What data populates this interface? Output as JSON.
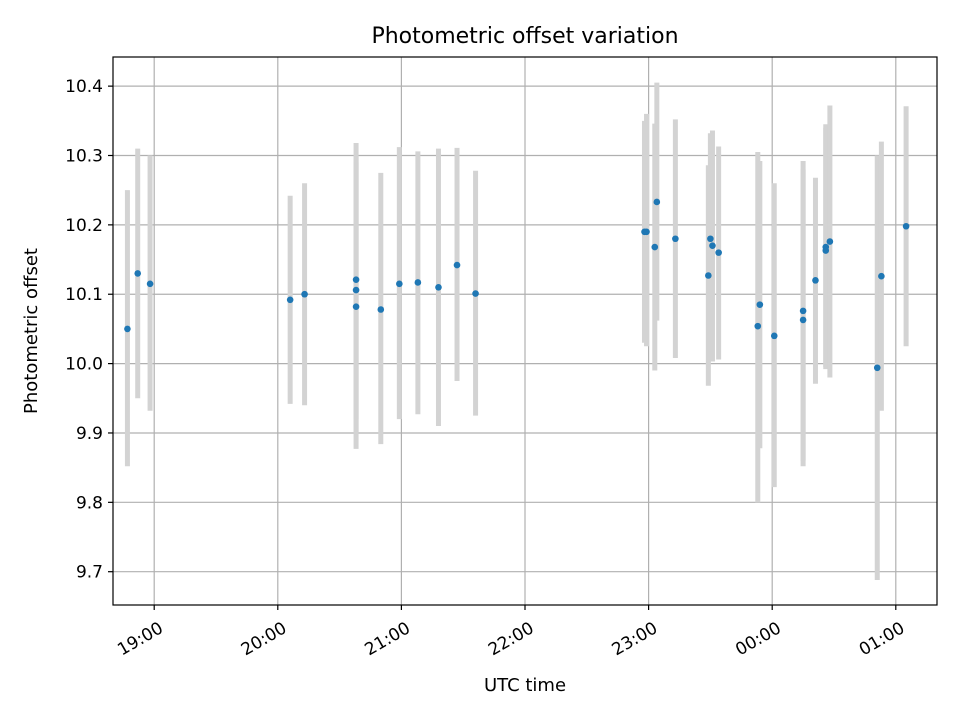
{
  "chart_data": {
    "type": "scatter",
    "title": "Photometric offset variation",
    "xlabel": "UTC time",
    "ylabel": "Photometric offset",
    "xlim": [
      "18:40",
      "01:20"
    ],
    "ylim": [
      9.652,
      10.442
    ],
    "x_ticks": [
      "19:00",
      "20:00",
      "21:00",
      "22:00",
      "23:00",
      "00:00",
      "01:00"
    ],
    "y_ticks": [
      "9.7",
      "9.8",
      "9.9",
      "10.0",
      "10.1",
      "10.2",
      "10.3",
      "10.4"
    ],
    "grid": true,
    "legend": "none",
    "colors": {
      "points": "#1f77b4",
      "errorbars": "#d3d3d3",
      "grid": "#b0b0b0"
    },
    "points": [
      {
        "x": "18:47",
        "y": 10.05,
        "err_low": 9.852,
        "err_high": 10.25
      },
      {
        "x": "18:52",
        "y": 10.13,
        "err_low": 9.95,
        "err_high": 10.31
      },
      {
        "x": "18:58",
        "y": 10.115,
        "err_low": 9.932,
        "err_high": 10.3
      },
      {
        "x": "20:06",
        "y": 10.092,
        "err_low": 9.942,
        "err_high": 10.242
      },
      {
        "x": "20:13",
        "y": 10.1,
        "err_low": 9.94,
        "err_high": 10.26
      },
      {
        "x": "20:38",
        "y": 10.121,
        "err_low": 9.92,
        "err_high": 10.318
      },
      {
        "x": "20:38",
        "y": 10.106,
        "err_low": 9.9,
        "err_high": 10.3
      },
      {
        "x": "20:38",
        "y": 10.082,
        "err_low": 9.877,
        "err_high": 10.29
      },
      {
        "x": "20:50",
        "y": 10.078,
        "err_low": 9.884,
        "err_high": 10.275
      },
      {
        "x": "20:59",
        "y": 10.115,
        "err_low": 9.92,
        "err_high": 10.312
      },
      {
        "x": "21:08",
        "y": 10.117,
        "err_low": 9.927,
        "err_high": 10.306
      },
      {
        "x": "21:18",
        "y": 10.11,
        "err_low": 9.91,
        "err_high": 10.31
      },
      {
        "x": "21:27",
        "y": 10.142,
        "err_low": 9.975,
        "err_high": 10.311
      },
      {
        "x": "21:36",
        "y": 10.101,
        "err_low": 9.925,
        "err_high": 10.278
      },
      {
        "x": "22:58",
        "y": 10.19,
        "err_low": 10.03,
        "err_high": 10.35
      },
      {
        "x": "22:59",
        "y": 10.19,
        "err_low": 10.025,
        "err_high": 10.36
      },
      {
        "x": "23:03",
        "y": 10.168,
        "err_low": 9.99,
        "err_high": 10.346
      },
      {
        "x": "23:04",
        "y": 10.233,
        "err_low": 10.062,
        "err_high": 10.405
      },
      {
        "x": "23:13",
        "y": 10.18,
        "err_low": 10.008,
        "err_high": 10.352
      },
      {
        "x": "23:29",
        "y": 10.127,
        "err_low": 9.968,
        "err_high": 10.286
      },
      {
        "x": "23:30",
        "y": 10.18,
        "err_low": 10.027,
        "err_high": 10.332
      },
      {
        "x": "23:31",
        "y": 10.17,
        "err_low": 10.003,
        "err_high": 10.336
      },
      {
        "x": "23:34",
        "y": 10.16,
        "err_low": 10.006,
        "err_high": 10.313
      },
      {
        "x": "23:53",
        "y": 10.054,
        "err_low": 9.8,
        "err_high": 10.305
      },
      {
        "x": "23:54",
        "y": 10.085,
        "err_low": 9.878,
        "err_high": 10.292
      },
      {
        "x": "00:01",
        "y": 10.04,
        "err_low": 9.822,
        "err_high": 10.26
      },
      {
        "x": "00:15",
        "y": 10.063,
        "err_low": 9.852,
        "err_high": 10.292
      },
      {
        "x": "00:15",
        "y": 10.076,
        "err_low": 9.86,
        "err_high": 10.28
      },
      {
        "x": "00:21",
        "y": 10.12,
        "err_low": 9.971,
        "err_high": 10.268
      },
      {
        "x": "00:26",
        "y": 10.168,
        "err_low": 9.995,
        "err_high": 10.345
      },
      {
        "x": "00:26",
        "y": 10.163,
        "err_low": 9.992,
        "err_high": 10.34
      },
      {
        "x": "00:28",
        "y": 10.176,
        "err_low": 9.98,
        "err_high": 10.372
      },
      {
        "x": "00:51",
        "y": 9.994,
        "err_low": 9.688,
        "err_high": 10.3
      },
      {
        "x": "00:53",
        "y": 10.126,
        "err_low": 9.932,
        "err_high": 10.32
      },
      {
        "x": "01:05",
        "y": 10.198,
        "err_low": 10.025,
        "err_high": 10.371
      }
    ]
  }
}
